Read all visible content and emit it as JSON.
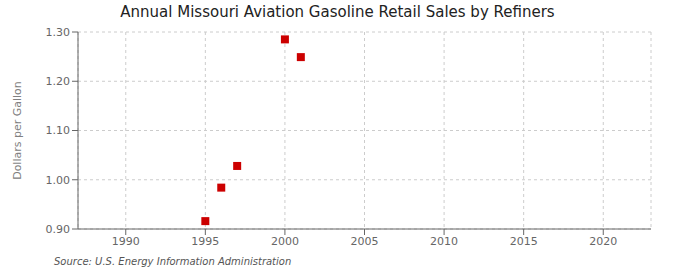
{
  "chart_data": {
    "type": "scatter",
    "title": "Annual Missouri Aviation Gasoline Retail Sales by Refiners",
    "y_label": "Dollars per Gallon",
    "annotations": [
      "Source: U.S. Energy Information Administration"
    ],
    "x": [
      1995,
      1996,
      1997,
      2000,
      2001
    ],
    "values": [
      0.916,
      0.984,
      1.028,
      1.285,
      1.249
    ],
    "color": "#cc0000",
    "marker": "square",
    "xlim": [
      1987,
      2023
    ],
    "ylim": [
      0.9,
      1.3
    ],
    "xticks": [
      1990,
      1995,
      2000,
      2005,
      2010,
      2015,
      2020
    ],
    "yticks": [
      {
        "value": 0.9,
        "label": "0.90"
      },
      {
        "value": 1.0,
        "label": "1.00"
      },
      {
        "value": 1.1,
        "label": "1.10"
      },
      {
        "value": 1.2,
        "label": "1.20"
      },
      {
        "value": 1.3,
        "label": "1.30"
      }
    ],
    "grid": true
  }
}
